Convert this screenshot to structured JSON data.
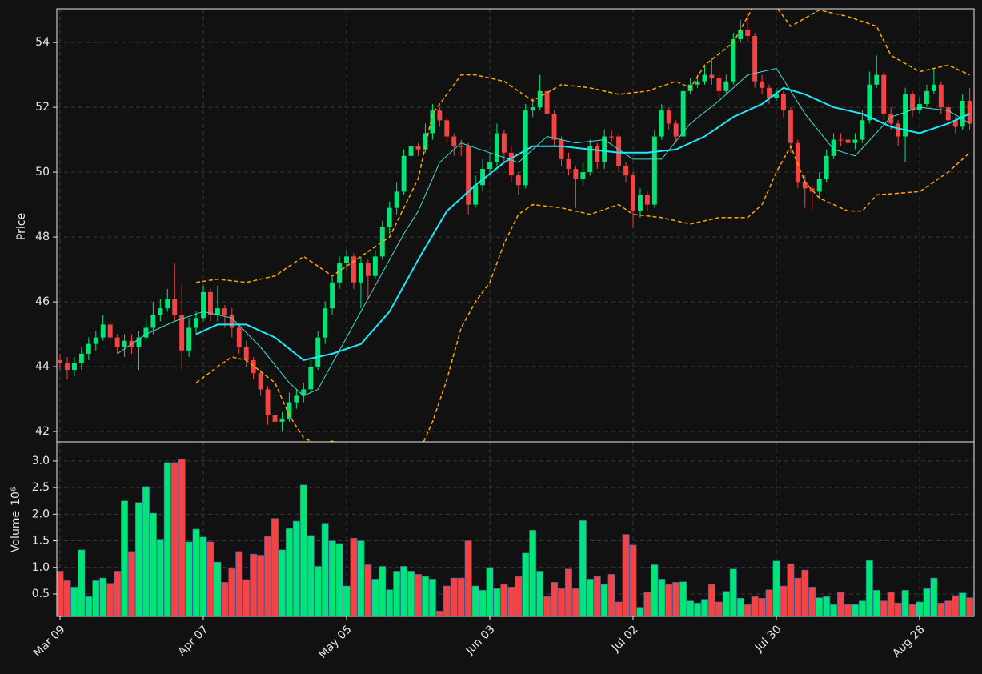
{
  "chart_data": {
    "type": "candlestick",
    "ylabel": "Price",
    "categories": [
      "Mar 09",
      null,
      null,
      null,
      null,
      null,
      null,
      null,
      null,
      null,
      null,
      null,
      null,
      null,
      null,
      null,
      null,
      null,
      null,
      null,
      "Apr 07",
      null,
      null,
      null,
      null,
      null,
      null,
      null,
      null,
      null,
      null,
      null,
      null,
      null,
      null,
      null,
      null,
      null,
      null,
      null,
      "May 05",
      null,
      null,
      null,
      null,
      null,
      null,
      null,
      null,
      null,
      null,
      null,
      null,
      null,
      null,
      null,
      null,
      null,
      null,
      null,
      "Jun 03",
      null,
      null,
      null,
      null,
      null,
      null,
      null,
      null,
      null,
      null,
      null,
      null,
      null,
      null,
      null,
      null,
      null,
      null,
      null,
      "Jul 02",
      null,
      null,
      null,
      null,
      null,
      null,
      null,
      null,
      null,
      null,
      null,
      null,
      null,
      null,
      null,
      null,
      null,
      null,
      null,
      "Jul 30",
      null,
      null,
      null,
      null,
      null,
      null,
      null,
      null,
      null,
      null,
      null,
      null,
      null,
      null,
      null,
      null,
      null,
      null,
      null,
      "Aug 28",
      null,
      null,
      null,
      null,
      null,
      null,
      null
    ],
    "open": [
      44.2,
      44.1,
      43.9,
      44.1,
      44.4,
      44.7,
      44.9,
      45.3,
      44.9,
      44.6,
      44.8,
      44.6,
      44.9,
      45.2,
      45.6,
      45.8,
      46.1,
      45.6,
      44.5,
      45.2,
      45.5,
      46.3,
      45.6,
      45.8,
      45.6,
      45.2,
      44.6,
      44.2,
      43.8,
      43.3,
      42.5,
      42.3,
      42.4,
      42.9,
      43.1,
      43.3,
      44.0,
      44.9,
      45.8,
      46.6,
      47.2,
      47.4,
      46.6,
      47.2,
      46.8,
      47.4,
      48.3,
      48.9,
      49.4,
      50.5,
      50.8,
      50.7,
      51.2,
      51.9,
      51.6,
      51.1,
      50.8,
      50.8,
      49.0,
      49.6,
      50.1,
      50.3,
      51.2,
      50.6,
      49.9,
      49.6,
      51.9,
      52.0,
      52.5,
      51.8,
      51.0,
      50.4,
      50.1,
      49.8,
      50.0,
      50.8,
      50.3,
      51.1,
      51.1,
      50.2,
      49.9,
      48.8,
      49.3,
      49.0,
      51.1,
      51.9,
      51.5,
      51.1,
      52.5,
      52.7,
      52.8,
      53.0,
      52.9,
      52.5,
      52.8,
      54.1,
      54.4,
      54.2,
      52.8,
      52.6,
      52.3,
      52.4,
      51.9,
      50.9,
      49.7,
      49.5,
      49.4,
      49.8,
      50.5,
      51.0,
      51.0,
      50.9,
      51.0,
      51.6,
      52.7,
      53.0,
      51.8,
      51.5,
      51.1,
      52.4,
      51.9,
      52.1,
      52.5,
      52.7,
      52.0,
      51.6,
      51.4,
      52.2
    ],
    "high": [
      44.4,
      44.3,
      44.3,
      44.6,
      44.9,
      45.1,
      45.6,
      45.4,
      45.0,
      45.0,
      45.0,
      45.1,
      45.5,
      46.0,
      46.1,
      46.4,
      47.2,
      46.6,
      45.5,
      45.7,
      46.5,
      46.4,
      46.5,
      45.9,
      45.8,
      45.3,
      44.8,
      44.3,
      43.9,
      43.4,
      42.8,
      42.6,
      43.2,
      43.3,
      43.5,
      44.2,
      45.1,
      46.0,
      46.8,
      47.4,
      47.6,
      47.5,
      47.4,
      47.3,
      47.6,
      48.5,
      49.1,
      49.7,
      50.7,
      51.1,
      50.9,
      51.5,
      52.1,
      52.0,
      51.7,
      51.2,
      51.0,
      50.9,
      49.9,
      50.4,
      50.6,
      51.5,
      51.3,
      50.8,
      50.0,
      52.1,
      52.3,
      53.0,
      52.6,
      51.9,
      51.1,
      50.6,
      50.2,
      50.3,
      51.0,
      50.9,
      51.3,
      51.3,
      51.2,
      50.3,
      50.0,
      49.5,
      49.4,
      51.3,
      52.1,
      52.0,
      51.6,
      52.7,
      52.9,
      53.0,
      53.3,
      53.5,
      53.0,
      53.0,
      54.3,
      54.7,
      54.9,
      54.3,
      53.0,
      52.7,
      52.6,
      52.5,
      52.0,
      51.0,
      49.9,
      49.6,
      50.0,
      50.7,
      51.2,
      51.2,
      51.1,
      51.2,
      51.9,
      53.1,
      53.6,
      53.1,
      52.0,
      51.6,
      52.6,
      52.5,
      52.3,
      52.7,
      53.2,
      52.8,
      52.1,
      51.7,
      52.4,
      52.6
    ],
    "low": [
      43.9,
      43.6,
      43.7,
      43.9,
      44.2,
      44.5,
      44.8,
      44.7,
      44.4,
      44.3,
      44.4,
      43.9,
      44.8,
      45.0,
      45.4,
      45.7,
      45.4,
      43.9,
      44.3,
      45.0,
      45.4,
      45.4,
      45.4,
      45.2,
      44.9,
      44.4,
      44.0,
      43.6,
      43.1,
      42.2,
      41.8,
      42.0,
      42.3,
      42.7,
      42.9,
      43.2,
      43.9,
      44.7,
      45.6,
      46.4,
      47.0,
      46.4,
      45.8,
      46.1,
      46.7,
      47.3,
      48.1,
      48.7,
      49.3,
      50.4,
      50.5,
      50.6,
      51.0,
      51.4,
      50.9,
      50.5,
      50.5,
      48.7,
      48.9,
      49.4,
      50.0,
      50.2,
      50.3,
      49.7,
      49.3,
      49.5,
      51.7,
      51.9,
      51.6,
      50.8,
      50.2,
      49.9,
      48.9,
      49.6,
      49.9,
      50.1,
      50.1,
      50.9,
      50.0,
      49.7,
      48.3,
      48.6,
      48.8,
      48.9,
      51.0,
      51.3,
      50.9,
      51.0,
      52.4,
      52.6,
      52.7,
      52.7,
      52.3,
      52.4,
      52.7,
      54.0,
      54.0,
      52.6,
      52.4,
      52.1,
      52.2,
      51.7,
      50.6,
      49.5,
      48.9,
      48.8,
      49.2,
      49.7,
      50.4,
      50.8,
      50.7,
      50.7,
      50.9,
      51.5,
      52.6,
      51.6,
      51.3,
      50.8,
      50.3,
      51.7,
      51.8,
      52.0,
      52.4,
      51.8,
      51.4,
      51.2,
      51.3,
      51.3
    ],
    "close": [
      44.1,
      43.9,
      44.1,
      44.4,
      44.7,
      44.9,
      45.3,
      44.9,
      44.6,
      44.8,
      44.6,
      44.9,
      45.2,
      45.6,
      45.8,
      46.1,
      45.6,
      44.5,
      45.2,
      45.5,
      46.3,
      45.6,
      45.8,
      45.6,
      45.2,
      44.6,
      44.2,
      43.8,
      43.3,
      42.5,
      42.3,
      42.4,
      42.9,
      43.1,
      43.3,
      44.0,
      44.9,
      45.8,
      46.6,
      47.2,
      47.4,
      46.6,
      47.2,
      46.8,
      47.4,
      48.3,
      48.9,
      49.4,
      50.5,
      50.8,
      50.7,
      51.2,
      51.9,
      51.6,
      51.1,
      50.8,
      50.8,
      49.0,
      49.6,
      50.1,
      50.3,
      51.2,
      50.6,
      49.9,
      49.6,
      51.9,
      52.0,
      52.5,
      51.8,
      51.0,
      50.4,
      50.1,
      49.8,
      50.0,
      50.8,
      50.3,
      51.1,
      51.1,
      50.2,
      49.9,
      48.8,
      49.3,
      49.0,
      51.1,
      51.9,
      51.5,
      51.1,
      52.5,
      52.7,
      52.8,
      53.0,
      52.9,
      52.5,
      52.8,
      54.1,
      54.4,
      54.2,
      52.8,
      52.6,
      52.3,
      52.4,
      51.9,
      50.9,
      49.7,
      49.5,
      49.4,
      49.8,
      50.5,
      51.0,
      51.0,
      50.9,
      51.0,
      51.6,
      52.7,
      53.0,
      51.8,
      51.5,
      51.1,
      52.4,
      51.9,
      52.1,
      52.5,
      52.7,
      52.0,
      51.6,
      51.4,
      52.2,
      51.5
    ],
    "up_color": "#00e676",
    "down_color": "#f44343",
    "ylim": [
      41.68,
      55.04
    ],
    "yticks": [
      42,
      44,
      46,
      48,
      50,
      52,
      54
    ],
    "grid": true,
    "lines": [
      {
        "color": "#40e0d0",
        "width": 1,
        "dashed": false,
        "x": [
          8,
          12,
          16,
          20,
          24,
          28,
          32,
          34,
          36,
          40,
          44,
          48,
          50,
          53,
          56,
          60,
          64,
          68,
          72,
          76,
          80,
          84,
          88,
          92,
          96,
          100,
          104,
          108,
          111,
          116,
          120,
          124,
          127
        ],
        "values": [
          44.4,
          45.0,
          45.4,
          45.7,
          45.5,
          44.6,
          43.5,
          43.1,
          43.3,
          44.9,
          46.5,
          48.1,
          48.8,
          50.3,
          50.9,
          50.6,
          50.3,
          51.1,
          50.9,
          51.0,
          50.4,
          50.4,
          51.5,
          52.2,
          53.0,
          53.2,
          51.8,
          50.7,
          50.5,
          51.7,
          52.0,
          51.9,
          51.5
        ]
      },
      {
        "color": "#1ee8ff",
        "width": 2,
        "dashed": false,
        "x": [
          19,
          22,
          26,
          30,
          34,
          38,
          42,
          46,
          50,
          54,
          58,
          62,
          66,
          70,
          74,
          78,
          82,
          86,
          90,
          94,
          98,
          101,
          104,
          108,
          112,
          116,
          120,
          124,
          127
        ],
        "values": [
          45.0,
          45.3,
          45.3,
          44.9,
          44.2,
          44.4,
          44.7,
          45.7,
          47.3,
          48.8,
          49.6,
          50.3,
          50.8,
          50.8,
          50.7,
          50.6,
          50.6,
          50.7,
          51.1,
          51.7,
          52.1,
          52.6,
          52.4,
          52.0,
          51.8,
          51.4,
          51.2,
          51.5,
          51.8
        ]
      },
      {
        "color": "#ffa500",
        "width": 1.5,
        "dashed": true,
        "x": [
          19,
          22,
          26,
          30,
          34,
          38,
          42,
          46,
          48,
          50,
          52,
          54,
          56,
          58,
          62,
          66,
          70,
          74,
          78,
          82,
          86,
          88,
          90,
          94,
          97,
          100,
          102,
          106,
          110,
          114,
          116,
          120,
          124,
          127
        ],
        "values": [
          46.6,
          46.7,
          46.6,
          46.8,
          47.4,
          46.8,
          47.4,
          48.0,
          48.9,
          49.8,
          51.8,
          52.4,
          53.0,
          53.0,
          52.8,
          52.2,
          52.7,
          52.6,
          52.4,
          52.5,
          52.8,
          52.6,
          53.3,
          54.0,
          55.2,
          55.1,
          54.5,
          55.0,
          54.8,
          54.5,
          53.6,
          53.1,
          53.3,
          53.0
        ]
      },
      {
        "color": "#ffa500",
        "width": 1.5,
        "dashed": true,
        "x": [
          19,
          22,
          24,
          26,
          30,
          32,
          34,
          36,
          38,
          40,
          44,
          50,
          52,
          54,
          56,
          58,
          60,
          62,
          64,
          66,
          70,
          74,
          78,
          80,
          84,
          88,
          92,
          96,
          98,
          100,
          102,
          104,
          106,
          110,
          112,
          114,
          120,
          124,
          127
        ],
        "values": [
          43.5,
          44.0,
          44.3,
          44.2,
          43.5,
          42.5,
          41.8,
          41.6,
          41.7,
          41.5,
          41.0,
          41.3,
          42.3,
          43.6,
          45.2,
          46.0,
          46.6,
          47.8,
          48.7,
          49.0,
          48.9,
          48.7,
          49.0,
          48.7,
          48.6,
          48.4,
          48.6,
          48.6,
          49.0,
          50.0,
          50.8,
          49.7,
          49.2,
          48.8,
          48.8,
          49.3,
          49.4,
          50.0,
          50.6
        ]
      }
    ],
    "volume": {
      "ylabel": "Volume",
      "scale_label": "10⁶",
      "values": [
        0.93,
        0.75,
        0.63,
        1.33,
        0.45,
        0.75,
        0.8,
        0.7,
        0.93,
        2.25,
        1.3,
        2.22,
        2.52,
        2.02,
        1.53,
        2.97,
        2.97,
        3.03,
        1.48,
        1.72,
        1.57,
        1.48,
        1.1,
        0.72,
        0.98,
        1.3,
        0.77,
        1.25,
        1.23,
        1.58,
        1.92,
        1.33,
        1.73,
        1.87,
        2.55,
        1.6,
        1.02,
        1.83,
        1.5,
        1.45,
        0.65,
        1.55,
        1.5,
        1.05,
        0.78,
        1.02,
        0.58,
        0.93,
        1.02,
        0.93,
        0.87,
        0.83,
        0.78,
        0.18,
        0.65,
        0.8,
        0.8,
        1.5,
        0.65,
        0.57,
        1.0,
        0.6,
        0.68,
        0.63,
        0.83,
        1.27,
        1.7,
        0.93,
        0.45,
        0.72,
        0.6,
        0.97,
        0.6,
        1.88,
        0.78,
        0.83,
        0.68,
        0.87,
        0.35,
        1.62,
        1.42,
        0.25,
        0.53,
        1.05,
        0.78,
        0.68,
        0.72,
        0.73,
        0.37,
        0.33,
        0.4,
        0.68,
        0.35,
        0.55,
        0.97,
        0.42,
        0.3,
        0.45,
        0.42,
        0.58,
        1.12,
        0.65,
        1.07,
        0.8,
        0.95,
        0.63,
        0.43,
        0.45,
        0.3,
        0.53,
        0.3,
        0.3,
        0.37,
        1.13,
        0.57,
        0.37,
        0.53,
        0.33,
        0.57,
        0.3,
        0.35,
        0.6,
        0.8,
        0.33,
        0.37,
        0.47,
        0.52,
        0.43
      ],
      "ylim": [
        0.078,
        3.36
      ],
      "yticks": [
        0.5,
        {
          "value": 1,
          "label": "1.0"
        },
        1.5,
        {
          "value": 2,
          "label": "2.0"
        },
        2.5,
        {
          "value": 3,
          "label": "3.0"
        }
      ]
    }
  }
}
